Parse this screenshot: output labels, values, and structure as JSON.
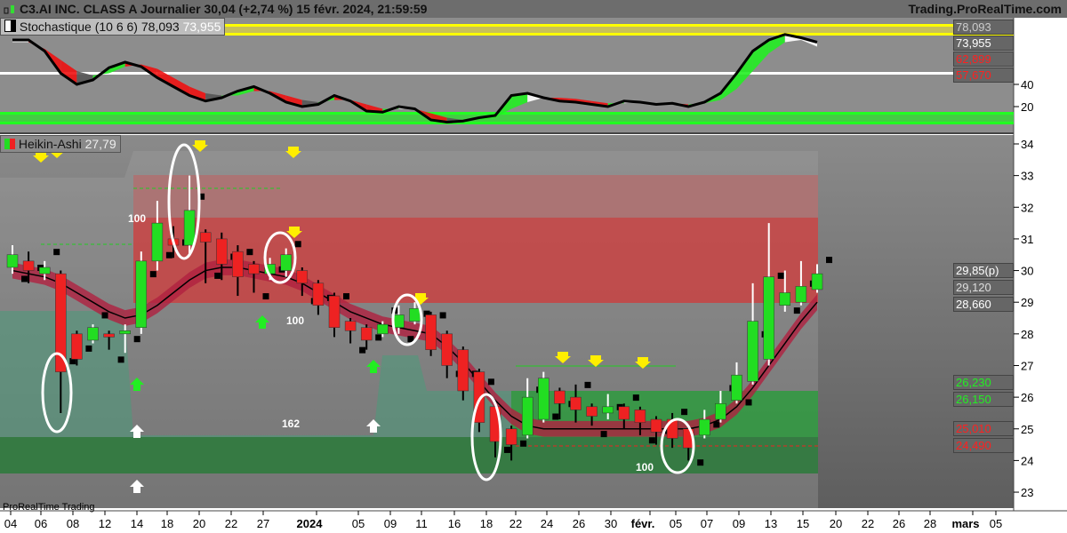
{
  "header": {
    "title": "C3.AI INC. CLASS A Journalier 30,04 (+2,74 %) 15 févr. 2024, 21:59:59",
    "site": "Trading.ProRealTime.com"
  },
  "footer": {
    "brand": "ProRealTime Trading"
  },
  "chart_data": [
    {
      "type": "line",
      "title": "Stochastique (10 6 6)",
      "values_label": {
        "k": "78,093",
        "d": "73,955"
      },
      "ylim": [
        0,
        100
      ],
      "yticks": [
        "40",
        "20"
      ],
      "right_tags": [
        {
          "text": "78,093",
          "color": "#cccccc"
        },
        {
          "text": "73,955",
          "color": "#ffffff"
        },
        {
          "text": "62,899",
          "color": "#ff2020"
        },
        {
          "text": "57,670",
          "color": "#ff2020"
        }
      ],
      "k_series": [
        80,
        80,
        70,
        50,
        40,
        44,
        55,
        60,
        56,
        46,
        38,
        30,
        25,
        28,
        34,
        38,
        32,
        24,
        20,
        22,
        30,
        25,
        16,
        15,
        20,
        18,
        8,
        6,
        7,
        10,
        12,
        30,
        32,
        28,
        25,
        24,
        22,
        20,
        25,
        24,
        22,
        23,
        20,
        24,
        32,
        50,
        70,
        80,
        85,
        82,
        78
      ],
      "d_series": [
        78,
        78,
        72,
        62,
        52,
        48,
        50,
        56,
        58,
        54,
        46,
        38,
        32,
        30,
        30,
        34,
        34,
        30,
        26,
        24,
        26,
        26,
        22,
        18,
        18,
        18,
        14,
        10,
        8,
        8,
        10,
        18,
        24,
        28,
        28,
        27,
        25,
        23,
        23,
        24,
        23,
        23,
        22,
        23,
        26,
        36,
        52,
        68,
        78,
        80,
        74
      ]
    },
    {
      "type": "candlestick",
      "title": "Heikin-Ashi",
      "value_label": "27,79",
      "ylim": [
        22.6,
        34.3
      ],
      "yticks": [
        "34",
        "33",
        "32",
        "31",
        "30",
        "29",
        "28",
        "27",
        "26",
        "25",
        "24",
        "23"
      ],
      "xticks": [
        "04",
        "06",
        "08",
        "12",
        "14",
        "18",
        "20",
        "22",
        "27",
        "2024",
        "05",
        "09",
        "11",
        "16",
        "18",
        "22",
        "24",
        "26",
        "30",
        "févr.",
        "05",
        "07",
        "09",
        "13",
        "15",
        "20",
        "22",
        "26",
        "28",
        "mars",
        "05"
      ],
      "annotations": [
        "100",
        "100",
        "162",
        "100"
      ],
      "right_tags": [
        {
          "text": "29,85(p)",
          "color": "#ffffff",
          "bg": "#666666"
        },
        {
          "text": "29,120",
          "color": "#dddddd"
        },
        {
          "text": "28,660",
          "color": "#ffffff"
        },
        {
          "text": "26,230",
          "color": "#22ee22"
        },
        {
          "text": "26,150",
          "color": "#22ee22"
        },
        {
          "text": "25,010",
          "color": "#ff2020"
        },
        {
          "text": "24,490",
          "color": "#ff2020"
        }
      ],
      "candles": [
        [
          30.1,
          30.5,
          30.8,
          29.9
        ],
        [
          30.3,
          30.0,
          30.6,
          29.6
        ],
        [
          29.9,
          30.1,
          30.3,
          29.7
        ],
        [
          29.9,
          26.8,
          30.0,
          25.5
        ],
        [
          28.0,
          27.2,
          28.1,
          27.0
        ],
        [
          27.8,
          28.2,
          28.3,
          27.7
        ],
        [
          28.0,
          27.9,
          28.1,
          27.5
        ],
        [
          28.0,
          28.1,
          28.3,
          27.4
        ],
        [
          28.2,
          30.3,
          30.6,
          28.0
        ],
        [
          30.3,
          31.5,
          32.2,
          30.0
        ],
        [
          31.0,
          30.8,
          31.4,
          30.4
        ],
        [
          30.8,
          31.9,
          33.0,
          30.5
        ],
        [
          31.2,
          30.9,
          31.3,
          29.6
        ],
        [
          31.0,
          30.2,
          31.2,
          29.7
        ],
        [
          30.6,
          29.8,
          30.8,
          29.2
        ],
        [
          30.2,
          29.9,
          30.3,
          29.3
        ],
        [
          29.9,
          30.2,
          30.4,
          29.7
        ],
        [
          30.0,
          30.5,
          30.7,
          29.8
        ],
        [
          30.0,
          29.6,
          30.1,
          29.2
        ],
        [
          29.6,
          28.9,
          29.7,
          28.6
        ],
        [
          29.2,
          28.2,
          29.3,
          27.9
        ],
        [
          28.4,
          28.1,
          28.5,
          27.7
        ],
        [
          28.2,
          27.8,
          28.3,
          27.5
        ],
        [
          28.0,
          28.3,
          28.4,
          27.9
        ],
        [
          28.2,
          28.6,
          28.9,
          28.0
        ],
        [
          28.4,
          28.8,
          29.0,
          28.3
        ],
        [
          28.6,
          27.5,
          28.7,
          27.3
        ],
        [
          28.0,
          27.0,
          28.1,
          26.6
        ],
        [
          27.5,
          26.2,
          27.6,
          25.9
        ],
        [
          26.8,
          25.2,
          26.9,
          24.9
        ],
        [
          25.7,
          24.6,
          25.8,
          24.1
        ],
        [
          25.0,
          24.5,
          25.1,
          24.0
        ],
        [
          24.8,
          26.0,
          26.6,
          24.7
        ],
        [
          25.3,
          26.6,
          26.8,
          25.2
        ],
        [
          26.2,
          25.8,
          26.3,
          25.3
        ],
        [
          26.0,
          25.6,
          26.4,
          25.2
        ],
        [
          25.7,
          25.4,
          25.8,
          25.1
        ],
        [
          25.5,
          25.7,
          26.1,
          25.3
        ],
        [
          25.7,
          25.3,
          25.8,
          25.0
        ],
        [
          25.6,
          25.2,
          25.7,
          24.8
        ],
        [
          25.3,
          24.9,
          25.4,
          24.5
        ],
        [
          25.3,
          24.7,
          25.5,
          24.4
        ],
        [
          25.0,
          24.4,
          25.1,
          24.0
        ],
        [
          24.8,
          25.3,
          25.6,
          24.7
        ],
        [
          25.3,
          25.8,
          26.2,
          25.2
        ],
        [
          25.9,
          26.7,
          27.1,
          25.8
        ],
        [
          26.5,
          28.4,
          29.6,
          26.4
        ],
        [
          27.2,
          29.8,
          31.5,
          27.0
        ],
        [
          28.9,
          29.3,
          30.0,
          28.7
        ],
        [
          29.0,
          29.5,
          30.3,
          28.9
        ],
        [
          29.4,
          29.9,
          30.2,
          29.3
        ]
      ],
      "ma": [
        30.0,
        29.9,
        29.8,
        29.6,
        29.3,
        29.0,
        28.7,
        28.5,
        28.6,
        28.9,
        29.3,
        29.7,
        30.0,
        30.1,
        30.1,
        30.0,
        29.9,
        29.8,
        29.6,
        29.3,
        29.0,
        28.7,
        28.5,
        28.3,
        28.2,
        28.1,
        28.0,
        27.6,
        27.1,
        26.5,
        25.9,
        25.4,
        25.1,
        25.0,
        25.0,
        25.0,
        25.0,
        25.0,
        25.0,
        25.0,
        25.0,
        25.0,
        25.0,
        25.1,
        25.3,
        25.7,
        26.3,
        27.0,
        27.7,
        28.4,
        29.0
      ],
      "colors": {
        "up": "#22dd22",
        "down": "#ee2222",
        "ma": "#000000"
      }
    }
  ]
}
